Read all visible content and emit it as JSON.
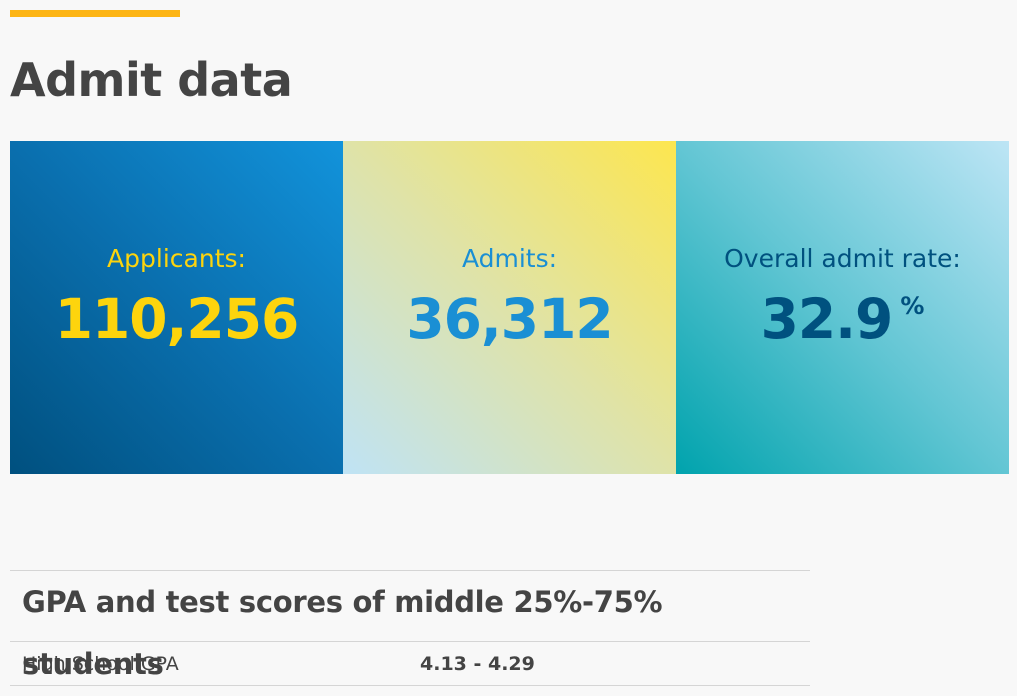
{
  "title": "Admit data",
  "stats": [
    {
      "label": "Applicants:",
      "value": "110,256",
      "color": "#fdd40d"
    },
    {
      "label": "Admits:",
      "value": "36,312",
      "color": "#1a8fd4"
    },
    {
      "label": "Overall admit rate:",
      "value": "32.9",
      "unit": "%",
      "color": "#00517f"
    }
  ],
  "scores": {
    "title": "GPA and test scores of middle 25%-75% students",
    "rows": [
      {
        "label": "High School GPA",
        "value": "4.13 - 4.29"
      }
    ]
  },
  "colors": {
    "accent": "#fdb515",
    "text": "#444444"
  }
}
